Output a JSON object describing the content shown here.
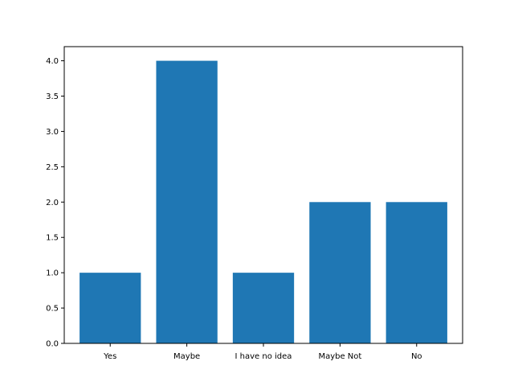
{
  "chart_data": {
    "type": "bar",
    "title": "",
    "xlabel": "",
    "ylabel": "",
    "categories": [
      "Yes",
      "Maybe",
      "I have no idea",
      "Maybe Not",
      "No"
    ],
    "values": [
      1,
      4,
      1,
      2,
      2
    ],
    "ylim": [
      0,
      4.2
    ],
    "yticks": [
      "0.0",
      "0.5",
      "1.0",
      "1.5",
      "2.0",
      "2.5",
      "3.0",
      "3.5",
      "4.0"
    ],
    "bar_color": "#1f77b4",
    "grid": false,
    "legend": "none"
  }
}
